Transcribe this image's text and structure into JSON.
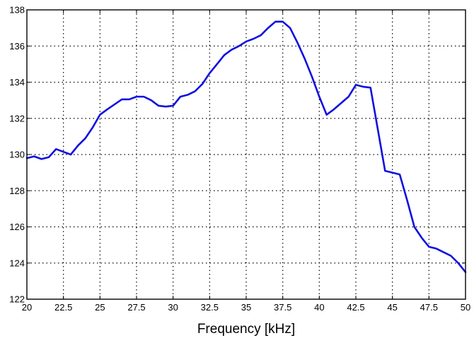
{
  "chart_data": {
    "type": "line",
    "title": "",
    "xlabel": "Frequency [kHz]",
    "ylabel": "",
    "xlim": [
      20,
      50
    ],
    "ylim": [
      122,
      138
    ],
    "x_ticks": [
      "20",
      "22.5",
      "25",
      "27.5",
      "30",
      "32.5",
      "35",
      "37.5",
      "40",
      "42.5",
      "45",
      "47.5",
      "50"
    ],
    "y_ticks": [
      "122",
      "124",
      "126",
      "128",
      "130",
      "132",
      "134",
      "136",
      "138"
    ],
    "grid": true,
    "grid_style": "dotted",
    "line_color": "#1010e0",
    "series": [
      {
        "name": "",
        "x": [
          20,
          20.5,
          21,
          21.5,
          22,
          23,
          23.5,
          24,
          24.5,
          25,
          25.5,
          26.5,
          27,
          27.5,
          28,
          28.5,
          29,
          29.5,
          30,
          30.5,
          31,
          31.5,
          32,
          32.5,
          33,
          33.5,
          34,
          34.5,
          35,
          35.5,
          36,
          36.5,
          37,
          37.5,
          38,
          38.5,
          39,
          39.5,
          40,
          40.5,
          41,
          42,
          42.5,
          43,
          43.5,
          44,
          44.5,
          45,
          45.5,
          46,
          46.5,
          47,
          47.5,
          48,
          48.5,
          49,
          49.5,
          50
        ],
        "y": [
          129.8,
          129.9,
          129.75,
          129.85,
          130.3,
          130.0,
          130.5,
          130.9,
          131.5,
          132.2,
          132.5,
          133.05,
          133.05,
          133.2,
          133.2,
          133.0,
          132.7,
          132.65,
          132.7,
          133.2,
          133.3,
          133.5,
          133.9,
          134.5,
          135.0,
          135.5,
          135.8,
          136.0,
          136.25,
          136.4,
          136.6,
          137.0,
          137.35,
          137.35,
          137.0,
          136.2,
          135.3,
          134.3,
          133.2,
          132.2,
          132.5,
          133.2,
          133.85,
          133.75,
          133.7,
          131.4,
          129.1,
          129.0,
          128.9,
          127.5,
          126.0,
          125.4,
          124.9,
          124.8,
          124.6,
          124.4,
          124.0,
          123.5
        ]
      }
    ]
  }
}
